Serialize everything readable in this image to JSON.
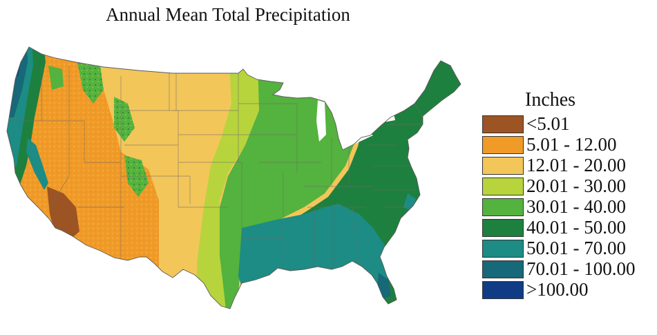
{
  "title": "Annual Mean Total Precipitation",
  "legend": {
    "title": "Inches",
    "items": [
      {
        "label": "<5.01",
        "color": "#9c5424"
      },
      {
        "label": "5.01 - 12.00",
        "color": "#f09a28"
      },
      {
        "label": "12.01 - 20.00",
        "color": "#f3c65a"
      },
      {
        "label": "20.01 - 30.00",
        "color": "#b7d43c"
      },
      {
        "label": "30.01 - 40.00",
        "color": "#54b23e"
      },
      {
        "label": "40.01 - 50.00",
        "color": "#1e803e"
      },
      {
        "label": "50.01 - 70.00",
        "color": "#1c8c84"
      },
      {
        "label": "70.01 - 100.00",
        "color": "#176878"
      },
      {
        "label": ">100.00",
        "color": "#103c86"
      }
    ]
  }
}
